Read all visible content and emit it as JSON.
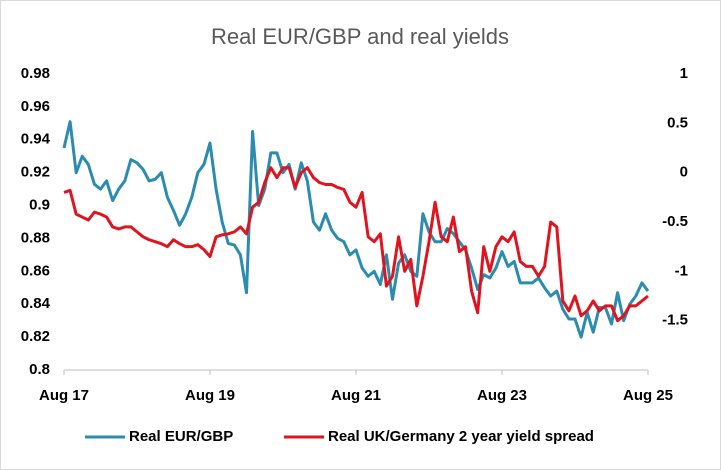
{
  "chart_data": {
    "type": "line",
    "title": "Real EUR/GBP and real yields",
    "categories": [
      "Aug 17",
      null,
      null,
      null,
      null,
      null,
      null,
      null,
      null,
      null,
      null,
      null,
      null,
      null,
      null,
      null,
      null,
      null,
      null,
      null,
      null,
      null,
      null,
      null,
      "Aug 19",
      null,
      null,
      null,
      null,
      null,
      null,
      null,
      null,
      null,
      null,
      null,
      null,
      null,
      null,
      null,
      null,
      null,
      null,
      null,
      null,
      null,
      null,
      null,
      "Aug 21",
      null,
      null,
      null,
      null,
      null,
      null,
      null,
      null,
      null,
      null,
      null,
      null,
      null,
      null,
      null,
      null,
      null,
      null,
      null,
      null,
      null,
      null,
      null,
      "Aug 23",
      null,
      null,
      null,
      null,
      null,
      null,
      null,
      null,
      null,
      null,
      null,
      null,
      null,
      null,
      null,
      null,
      null,
      null,
      null,
      null,
      null,
      null,
      null,
      "Aug 25"
    ],
    "series": [
      {
        "name": "Real EUR/GBP",
        "color": "#2b8cb0",
        "values": [
          0.935,
          0.951,
          0.92,
          0.93,
          0.925,
          0.913,
          0.91,
          0.915,
          0.903,
          0.91,
          0.915,
          0.928,
          0.926,
          0.922,
          0.915,
          0.916,
          0.92,
          0.905,
          0.897,
          0.888,
          0.895,
          0.905,
          0.92,
          0.925,
          0.938,
          0.91,
          0.89,
          0.877,
          0.876,
          0.87,
          0.847,
          0.945,
          0.9,
          0.91,
          0.932,
          0.932,
          0.92,
          0.925,
          0.91,
          0.926,
          0.915,
          0.89,
          0.885,
          0.895,
          0.885,
          0.88,
          0.878,
          0.87,
          0.873,
          0.862,
          0.857,
          0.86,
          0.852,
          0.87,
          0.843,
          0.865,
          0.87,
          0.86,
          0.857,
          0.895,
          0.884,
          0.878,
          0.878,
          0.886,
          0.883,
          0.878,
          0.873,
          0.862,
          0.849,
          0.858,
          0.856,
          0.862,
          0.872,
          0.863,
          0.866,
          0.853,
          0.853,
          0.853,
          0.856,
          0.85,
          0.845,
          0.848,
          0.837,
          0.831,
          0.831,
          0.82,
          0.835,
          0.823,
          0.838,
          0.838,
          0.828,
          0.847,
          0.83,
          0.84,
          0.845,
          0.853,
          0.848
        ]
      },
      {
        "name": "Real UK/Germany 2 year yield spread",
        "color": "#e0141e",
        "axis": "y2",
        "values": [
          -0.2,
          -0.18,
          -0.42,
          -0.45,
          -0.48,
          -0.4,
          -0.42,
          -0.45,
          -0.55,
          -0.57,
          -0.55,
          -0.55,
          -0.6,
          -0.65,
          -0.68,
          -0.7,
          -0.72,
          -0.75,
          -0.68,
          -0.72,
          -0.75,
          -0.75,
          -0.73,
          -0.78,
          -0.85,
          -0.65,
          -0.63,
          -0.62,
          -0.6,
          -0.55,
          -0.62,
          -0.35,
          -0.3,
          -0.1,
          0.05,
          -0.05,
          0.05,
          0.05,
          -0.15,
          0,
          0.05,
          -0.05,
          -0.1,
          -0.12,
          -0.12,
          -0.15,
          -0.17,
          -0.3,
          -0.35,
          -0.2,
          -0.65,
          -0.7,
          -0.62,
          -1.15,
          -1.05,
          -0.65,
          -1,
          -0.88,
          -1.35,
          -1.05,
          -0.7,
          -0.3,
          -0.65,
          -0.7,
          -0.45,
          -0.8,
          -0.75,
          -1.2,
          -1.42,
          -0.75,
          -1,
          -0.75,
          -0.65,
          -0.7,
          -0.6,
          -0.9,
          -0.95,
          -0.95,
          -1.05,
          -0.95,
          -0.5,
          -0.55,
          -1.3,
          -1.4,
          -1.25,
          -1.45,
          -1.4,
          -1.3,
          -1.4,
          -1.35,
          -1.35,
          -1.5,
          -1.45,
          -1.35,
          -1.35,
          -1.3,
          -1.25
        ]
      }
    ],
    "ylim": [
      0.8,
      0.98
    ],
    "yticks": [
      0.8,
      0.82,
      0.84,
      0.86,
      0.88,
      0.9,
      0.92,
      0.94,
      0.96,
      0.98
    ],
    "y2lim": [
      -2,
      1
    ],
    "y2ticks": [
      -1.5,
      -1,
      -0.5,
      0,
      0.5,
      1
    ]
  }
}
